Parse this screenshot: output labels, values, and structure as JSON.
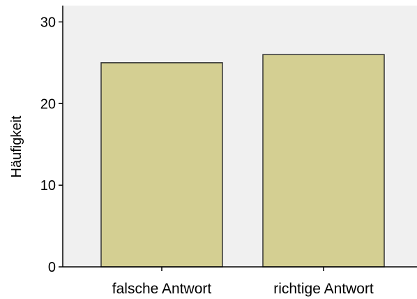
{
  "chart_data": {
    "type": "bar",
    "categories": [
      "falsche Antwort",
      "richtige Antwort"
    ],
    "values": [
      25,
      26
    ],
    "title": "",
    "xlabel": "",
    "ylabel": "Häufigkeit",
    "ylim": [
      0,
      32
    ],
    "yticks": [
      0,
      10,
      20,
      30
    ],
    "grid": false,
    "colors": {
      "bar_fill": "#d4cf92",
      "bar_stroke": "#333333",
      "plot_background": "#f0f0f0",
      "axis": "#000000"
    }
  }
}
